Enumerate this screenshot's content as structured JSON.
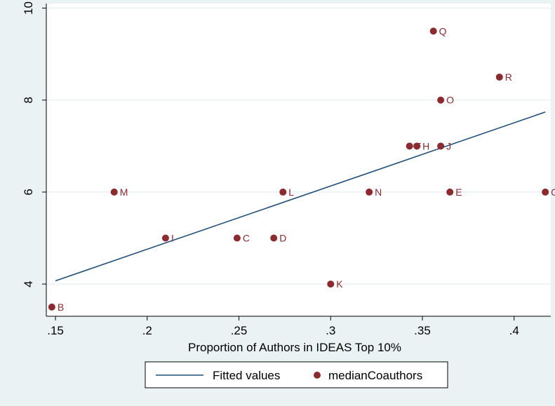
{
  "chart_data": {
    "type": "scatter",
    "title": "",
    "xlabel": "Proportion of Authors in IDEAS Top 10%",
    "ylabel": "",
    "xlim": [
      0.145,
      0.42
    ],
    "ylim": [
      3.3,
      10.1
    ],
    "x_ticks": [
      0.15,
      0.2,
      0.25,
      0.3,
      0.35,
      0.4
    ],
    "x_tick_labels": [
      ".15",
      ".2",
      ".25",
      ".3",
      ".35",
      ".4"
    ],
    "y_ticks": [
      4,
      6,
      8,
      10
    ],
    "y_tick_labels": [
      "4",
      "6",
      "8",
      "10"
    ],
    "grid": "horizontal",
    "legend_placement": "bottom",
    "series": [
      {
        "name": "Fitted values",
        "kind": "line",
        "color": "#1f4e79",
        "points": [
          {
            "x": 0.15,
            "y": 4.07
          },
          {
            "x": 0.417,
            "y": 7.74
          }
        ]
      },
      {
        "name": "medianCoauthors",
        "kind": "scatter",
        "color": "#8b2a2f",
        "points": [
          {
            "label": "B",
            "x": 0.148,
            "y": 3.5
          },
          {
            "label": "M",
            "x": 0.182,
            "y": 6
          },
          {
            "label": "I",
            "x": 0.21,
            "y": 5
          },
          {
            "label": "C",
            "x": 0.249,
            "y": 5
          },
          {
            "label": "D",
            "x": 0.269,
            "y": 5
          },
          {
            "label": "L",
            "x": 0.274,
            "y": 6
          },
          {
            "label": "K",
            "x": 0.3,
            "y": 4
          },
          {
            "label": "N",
            "x": 0.321,
            "y": 6
          },
          {
            "label": "F",
            "x": 0.343,
            "y": 7
          },
          {
            "label": "H",
            "x": 0.347,
            "y": 7
          },
          {
            "label": "Q",
            "x": 0.356,
            "y": 9.5
          },
          {
            "label": "O",
            "x": 0.36,
            "y": 8
          },
          {
            "label": "J",
            "x": 0.36,
            "y": 7
          },
          {
            "label": "E",
            "x": 0.365,
            "y": 6
          },
          {
            "label": "R",
            "x": 0.392,
            "y": 8.5
          },
          {
            "label": "G",
            "x": 0.417,
            "y": 6
          }
        ]
      }
    ]
  }
}
